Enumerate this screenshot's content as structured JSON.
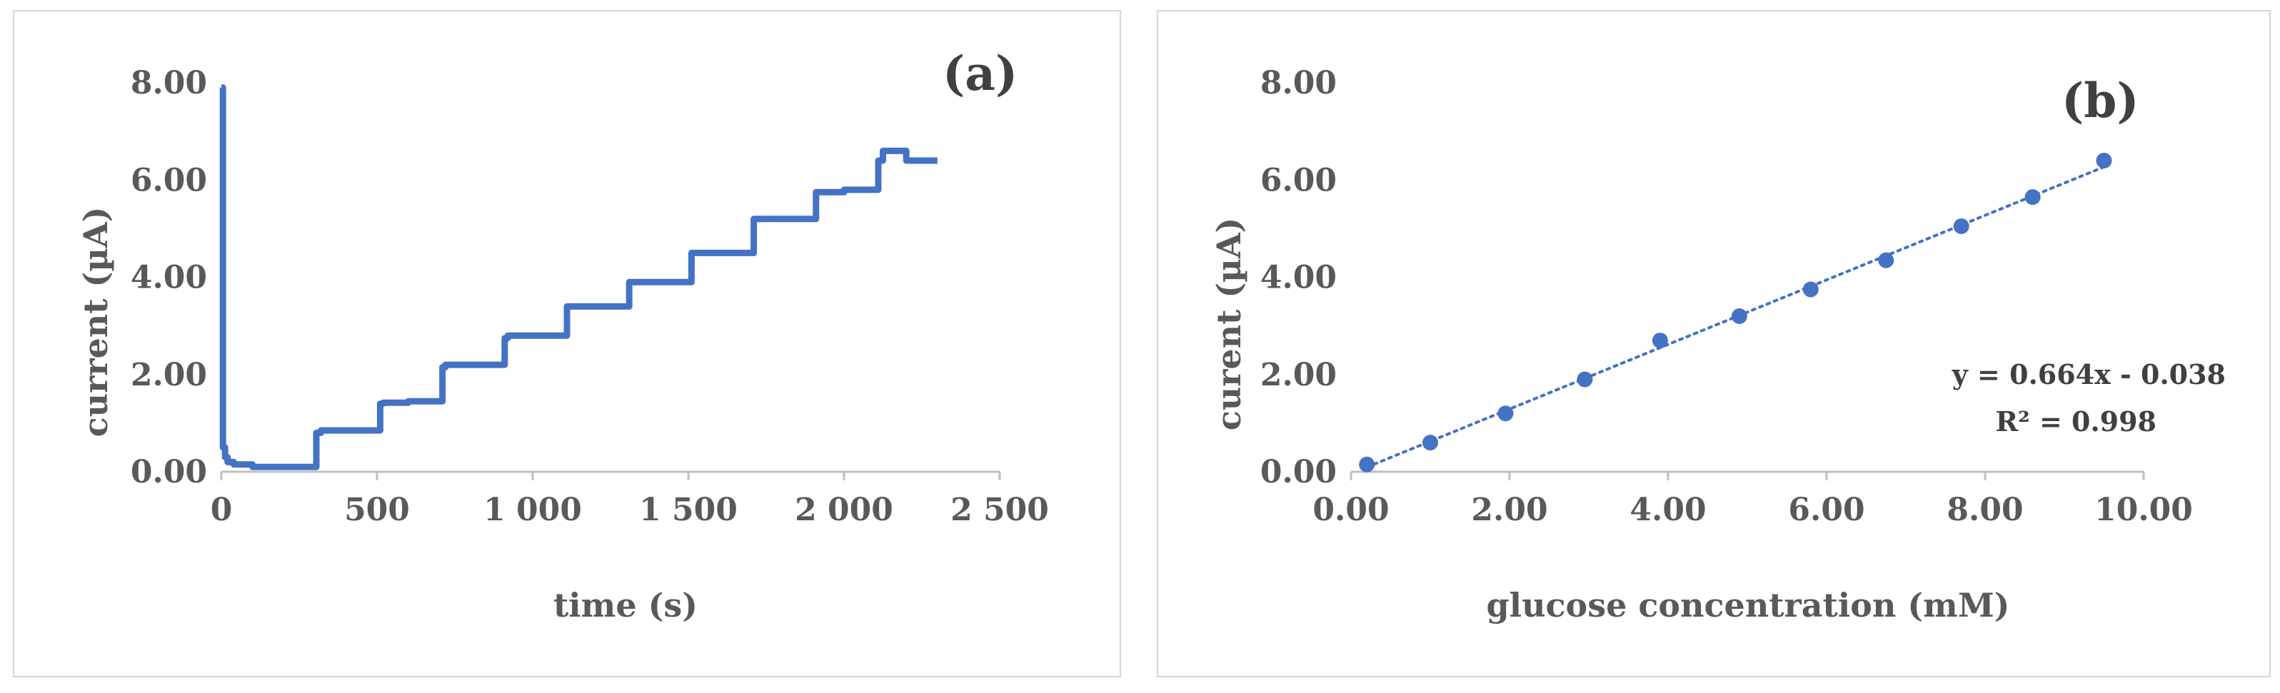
{
  "chart_data": [
    {
      "type": "line",
      "panel_label": "(a)",
      "xlabel": "time (s)",
      "ylabel": "current (µA)",
      "xlim": [
        0,
        2500
      ],
      "ylim": [
        0,
        8
      ],
      "x_ticks": [
        "0",
        "500",
        "1 000",
        "1 500",
        "2 000",
        "2 500"
      ],
      "y_ticks": [
        "0.00",
        "2.00",
        "4.00",
        "6.00",
        "8.00"
      ],
      "grid": false,
      "color": "#4472c4",
      "series": [
        {
          "x": [
            0,
            5,
            12,
            20,
            40,
            100,
            200,
            300,
            305,
            320,
            400,
            500,
            510,
            520,
            600,
            700,
            710,
            720,
            800,
            900,
            910,
            920,
            1000,
            1100,
            1110,
            1120,
            1200,
            1300,
            1310,
            1320,
            1400,
            1500,
            1510,
            1520,
            1600,
            1700,
            1710,
            1720,
            1800,
            1900,
            1910,
            1920,
            2000,
            2100,
            2110,
            2125,
            2200,
            2300
          ],
          "y": [
            7.9,
            0.5,
            0.3,
            0.2,
            0.15,
            0.1,
            0.1,
            0.1,
            0.8,
            0.85,
            0.85,
            0.85,
            1.4,
            1.42,
            1.45,
            1.45,
            2.15,
            2.2,
            2.2,
            2.2,
            2.75,
            2.8,
            2.8,
            2.8,
            3.4,
            3.4,
            3.4,
            3.4,
            3.9,
            3.9,
            3.9,
            3.9,
            4.5,
            4.5,
            4.5,
            4.5,
            5.2,
            5.2,
            5.2,
            5.2,
            5.75,
            5.75,
            5.8,
            5.8,
            6.4,
            6.6,
            6.4,
            6.4
          ]
        }
      ]
    },
    {
      "type": "scatter",
      "panel_label": "(b)",
      "xlabel": "glucose concentration (mM)",
      "ylabel": "curent (µA)",
      "xlim": [
        0,
        10
      ],
      "ylim": [
        0,
        8
      ],
      "x_ticks": [
        "0.00",
        "2.00",
        "4.00",
        "6.00",
        "8.00",
        "10.00"
      ],
      "y_ticks": [
        "0.00",
        "2.00",
        "4.00",
        "6.00",
        "8.00"
      ],
      "grid": false,
      "color": "#4472c4",
      "series": [
        {
          "x": [
            0.2,
            1.0,
            1.95,
            2.95,
            3.9,
            4.9,
            5.8,
            6.75,
            7.7,
            8.6,
            9.5
          ],
          "y": [
            0.15,
            0.6,
            1.2,
            1.9,
            2.7,
            3.2,
            3.75,
            4.35,
            5.05,
            5.65,
            6.4
          ]
        }
      ],
      "trendline": {
        "slope": 0.664,
        "intercept": -0.038,
        "style": "dotted"
      },
      "equation": "y = 0.664x - 0.038",
      "r_squared": "R² = 0.998"
    }
  ]
}
